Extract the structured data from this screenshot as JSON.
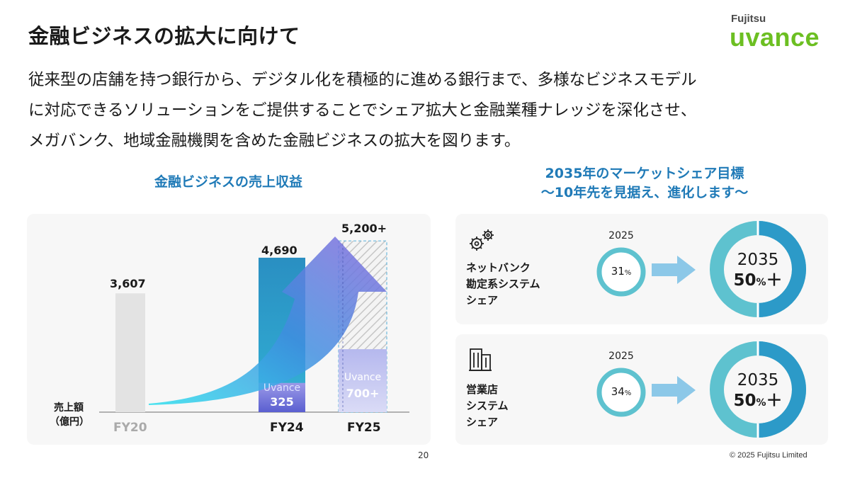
{
  "header": {
    "title": "金融ビジネスの拡大に向けて",
    "logo_brand": "Fujitsu",
    "logo_word": "uvance"
  },
  "intro": {
    "lines": [
      "従来型の店舗を持つ銀行から、デジタル化を積極的に進める銀行まで、多様なビジネスモデル",
      "に対応できるソリューションをご提供することでシェア拡大と金融業種ナレッジを深化させ、",
      "メガバンク、地域金融機関を含めた金融ビジネスの拡大を図ります。"
    ]
  },
  "revenue": {
    "section_title": "金融ビジネスの売上収益",
    "unit_label_1": "売上額",
    "unit_label_2": "（億円）",
    "fy20_label": "FY20",
    "fy24_label": "FY24",
    "fy25_label": "FY25",
    "fy20_value": "3,607",
    "fy24_value": "4,690",
    "fy25_value": "5,200+",
    "uvance_label": "Uvance",
    "fy24_uvance_value": "325",
    "fy25_uvance_value": "700+"
  },
  "chart_data": {
    "type": "bar",
    "categories": [
      "FY20",
      "FY24",
      "FY25"
    ],
    "values": [
      3607,
      4690,
      5200
    ],
    "value_labels": [
      "3,607",
      "4,690",
      "5,200+"
    ],
    "series": [
      {
        "name": "Uvance",
        "values": [
          null,
          325,
          700
        ],
        "value_labels": [
          "",
          "325",
          "700+"
        ]
      }
    ],
    "title": "金融ビジネスの売上収益",
    "ylabel": "売上額（億円）",
    "colors": {
      "fy20": "#e3e3e3",
      "fy24": "#2c9ac8",
      "uvance": "#7b6fd8",
      "fy25_hatch": "#c9c9c9",
      "arrow": "#6a6ee0"
    }
  },
  "share": {
    "section_title_1": "2035年のマーケットシェア目標",
    "section_title_2": "〜10年先を見据え、進化します〜",
    "cards": [
      {
        "icon": "gears-icon",
        "label_1": "ネットバンク",
        "label_2": "勘定系システム",
        "label_3": "シェア",
        "year_now": "2025",
        "share_now": "31",
        "share_now_fraction": 0.31,
        "year_target": "2035",
        "share_target": "50",
        "share_target_fraction": 0.5,
        "pct_sign": "%",
        "plus_sign": "＋"
      },
      {
        "icon": "building-icon",
        "label_1": "営業店",
        "label_2": "システム",
        "label_3": "シェア",
        "year_now": "2025",
        "share_now": "34",
        "share_now_fraction": 0.34,
        "year_target": "2035",
        "share_target": "50",
        "share_target_fraction": 0.5,
        "pct_sign": "%",
        "plus_sign": "＋"
      }
    ],
    "colors": {
      "ring_main": "#2c9ac8",
      "ring_light": "#5ec2cf",
      "arrow": "#8cc8e8"
    }
  },
  "footer": {
    "page_number": "20",
    "copyright": "© 2025 Fujitsu Limited"
  }
}
